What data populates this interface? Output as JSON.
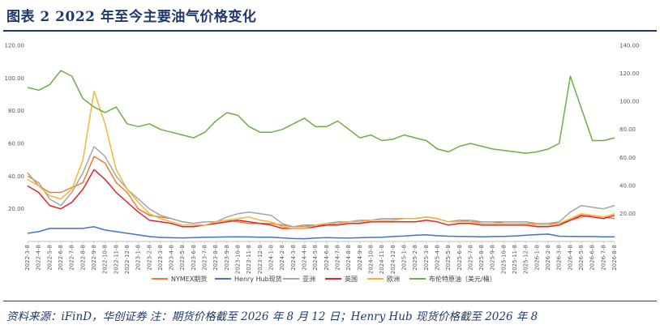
{
  "header": {
    "title": "图表 2    2022 年至今主要油气价格变化"
  },
  "footer": {
    "source": "资料来源：iFinD，华创证券 注：期货价格截至 2026 年 8 月 12 日；Henry Hub 现货价格截至 2026 年 8"
  },
  "chart_data": {
    "type": "line",
    "grid": false,
    "legend_position": "bottom",
    "y_left": {
      "min": 0,
      "max": 120,
      "ticks": [
        0,
        20,
        40,
        60,
        80,
        100,
        120
      ],
      "tick_labels": [
        "",
        "20.00",
        "40.00",
        "60.00",
        "80.00",
        "100.00",
        "120.00"
      ]
    },
    "y_right": {
      "min": 0,
      "max": 140,
      "ticks": [
        0,
        20,
        40,
        60,
        80,
        100,
        120,
        140
      ],
      "tick_labels": [
        "",
        "20.00",
        "40.00",
        "60.00",
        "80.00",
        "100.00",
        "120.00",
        "140.00"
      ]
    },
    "x_labels": [
      "2022-3-8",
      "2022-4-8",
      "2022-5-8",
      "2022-6-8",
      "2022-7-8",
      "2022-8-8",
      "2022-9-8",
      "2022-10-8",
      "2022-11-8",
      "2022-12-8",
      "2023-1-8",
      "2023-2-8",
      "2023-3-8",
      "2023-4-8",
      "2023-5-8",
      "2023-6-8",
      "2023-7-8",
      "2023-8-8",
      "2023-9-8",
      "2023-10-8",
      "2023-11-8",
      "2023-12-8",
      "2024-1-8",
      "2024-2-8",
      "2024-3-8",
      "2024-4-8",
      "2024-5-8",
      "2024-6-8",
      "2024-7-8",
      "2024-8-8",
      "2024-9-8",
      "2024-10-8",
      "2024-11-8",
      "2024-12-8",
      "2025-1-8",
      "2025-2-8",
      "2025-3-8",
      "2025-4-8",
      "2025-5-8",
      "2025-6-8",
      "2025-7-8",
      "2025-8-8",
      "2025-9-8",
      "2025-10-8",
      "2025-11-8",
      "2025-12-8",
      "2026-1-8",
      "2026-2-8",
      "2026-3-8",
      "2026-4-8",
      "2026-5-8",
      "2026-6-8",
      "2026-7-8",
      "2026-8-8"
    ],
    "series": [
      {
        "name": "NYMEX期货",
        "axis": "left",
        "color": "#ed7d31",
        "values": [
          42,
          34,
          30,
          30,
          33,
          36,
          52,
          48,
          36,
          30,
          20,
          16,
          15,
          14,
          12,
          11,
          12,
          12,
          13,
          12,
          11,
          11,
          11,
          10,
          9,
          10,
          10,
          10,
          11,
          12,
          12,
          13,
          13,
          13,
          14,
          14,
          15,
          14,
          12,
          13,
          12,
          12,
          12,
          11,
          11,
          11,
          11,
          11,
          11,
          13,
          15,
          16,
          15,
          14
        ]
      },
      {
        "name": "Henry Hub现货",
        "axis": "left",
        "color": "#4472c4",
        "values": [
          5,
          6,
          8,
          8,
          8,
          8,
          9,
          7,
          6,
          5,
          4,
          3,
          2.5,
          2.3,
          2.2,
          2.4,
          2.6,
          2.7,
          2.8,
          2.9,
          2.8,
          2.6,
          2.7,
          2.2,
          1.8,
          1.7,
          2.1,
          2.4,
          2.2,
          2.1,
          2.3,
          2.5,
          2.6,
          3.0,
          3.3,
          3.8,
          4.1,
          3.5,
          3.2,
          3.1,
          3.0,
          2.9,
          3.0,
          3.1,
          3.3,
          3.8,
          4.2,
          4.5,
          3.2,
          3.1,
          3.0,
          3.0,
          2.9,
          2.9
        ]
      },
      {
        "name": "亚洲",
        "axis": "left",
        "color": "#a5a5a5",
        "values": [
          40,
          36,
          26,
          22,
          30,
          42,
          58,
          52,
          40,
          32,
          26,
          20,
          16,
          14,
          12,
          11,
          12,
          12,
          15,
          17,
          18,
          17,
          16,
          11,
          9,
          9,
          10,
          11,
          12,
          12,
          13,
          13,
          14,
          14,
          14,
          14,
          15,
          14,
          12,
          13,
          13,
          12,
          12,
          12,
          12,
          12,
          11,
          11,
          12,
          18,
          22,
          21,
          20,
          22
        ]
      },
      {
        "name": "英国",
        "axis": "left",
        "color": "#e0242f",
        "values": [
          34,
          30,
          22,
          20,
          24,
          32,
          44,
          38,
          30,
          24,
          18,
          13,
          12,
          11,
          9,
          9,
          10,
          11,
          12,
          13,
          12,
          11,
          10,
          8,
          8,
          8,
          9,
          10,
          10,
          11,
          11,
          12,
          12,
          12,
          12,
          12,
          13,
          12,
          10,
          11,
          11,
          10,
          10,
          10,
          10,
          10,
          9,
          9,
          10,
          13,
          16,
          15,
          14,
          16
        ]
      },
      {
        "name": "欧洲",
        "axis": "left",
        "color": "#f5b53d",
        "values": [
          38,
          34,
          28,
          26,
          32,
          50,
          92,
          72,
          44,
          32,
          24,
          17,
          14,
          12,
          10,
          10,
          10,
          12,
          13,
          14,
          15,
          13,
          12,
          9,
          8,
          8,
          10,
          11,
          11,
          12,
          12,
          13,
          13,
          13,
          14,
          14,
          15,
          14,
          12,
          12,
          12,
          11,
          11,
          11,
          11,
          11,
          10,
          10,
          11,
          14,
          17,
          16,
          15,
          17
        ]
      },
      {
        "name": "布伦特原油（美元/桶）",
        "axis": "right",
        "color": "#70ad47",
        "values": [
          110,
          108,
          112,
          122,
          118,
          102,
          96,
          92,
          96,
          84,
          82,
          84,
          80,
          78,
          76,
          74,
          78,
          86,
          92,
          90,
          82,
          78,
          78,
          80,
          84,
          88,
          82,
          82,
          86,
          80,
          74,
          76,
          72,
          73,
          76,
          74,
          72,
          66,
          64,
          68,
          70,
          68,
          66,
          65,
          64,
          63,
          64,
          66,
          70,
          118,
          95,
          72,
          72,
          74
        ]
      }
    ]
  }
}
